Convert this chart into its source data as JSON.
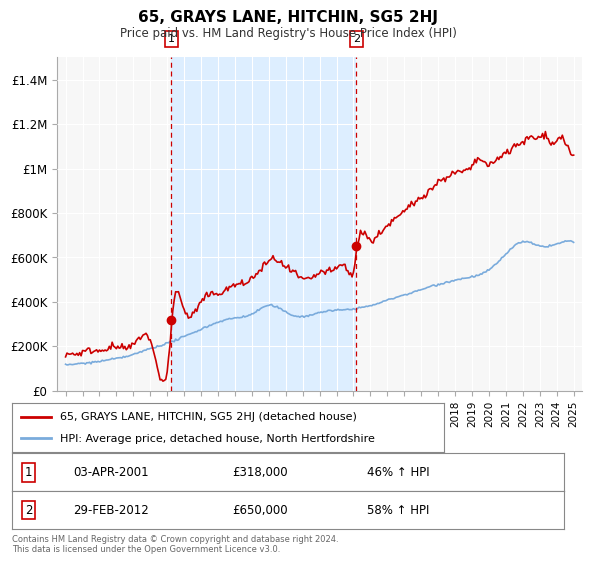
{
  "title": "65, GRAYS LANE, HITCHIN, SG5 2HJ",
  "subtitle": "Price paid vs. HM Land Registry's House Price Index (HPI)",
  "ylabel_ticks": [
    0,
    200000,
    400000,
    600000,
    800000,
    1000000,
    1200000,
    1400000
  ],
  "ylabel_labels": [
    "£0",
    "£200K",
    "£400K",
    "£600K",
    "£800K",
    "£1M",
    "£1.2M",
    "£1.4M"
  ],
  "ylim": [
    0,
    1500000
  ],
  "xlim_start": 1994.5,
  "xlim_end": 2025.5,
  "purchase1_year": 2001.25,
  "purchase1_price": 318000,
  "purchase1_label": "1",
  "purchase1_date": "03-APR-2001",
  "purchase1_amount": "£318,000",
  "purchase1_hpi": "46% ↑ HPI",
  "purchase2_year": 2012.17,
  "purchase2_price": 650000,
  "purchase2_label": "2",
  "purchase2_date": "29-FEB-2012",
  "purchase2_amount": "£650,000",
  "purchase2_hpi": "58% ↑ HPI",
  "line1_color": "#cc0000",
  "line2_color": "#7aabdc",
  "vline_color": "#cc0000",
  "shade_color": "#ddeeff",
  "legend_line1": "65, GRAYS LANE, HITCHIN, SG5 2HJ (detached house)",
  "legend_line2": "HPI: Average price, detached house, North Hertfordshire",
  "footnote": "Contains HM Land Registry data © Crown copyright and database right 2024.\nThis data is licensed under the Open Government Licence v3.0.",
  "background_color": "#ffffff",
  "plot_bg_color": "#f7f7f7"
}
